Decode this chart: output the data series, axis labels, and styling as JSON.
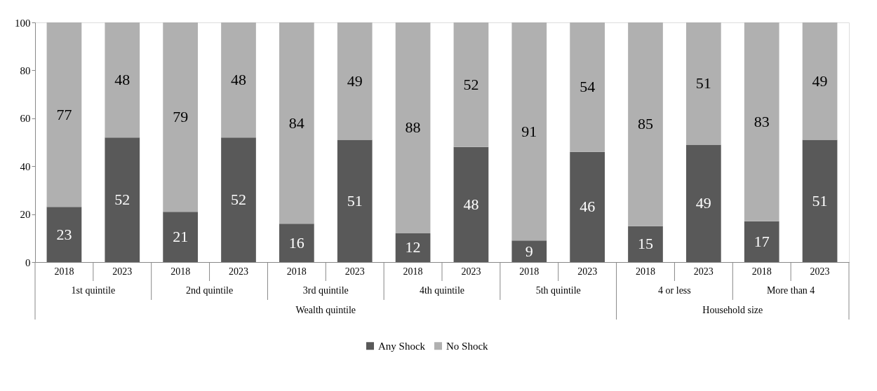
{
  "chart_data": {
    "type": "bar",
    "stacked": true,
    "data_labels": true,
    "legend": "bottom",
    "grid": false,
    "categories": [
      "2018",
      "2023",
      "2018",
      "2023",
      "2018",
      "2023",
      "2018",
      "2023",
      "2018",
      "2023",
      "2018",
      "2023",
      "2018",
      "2023"
    ],
    "annotations": [
      "1st quintile",
      "2nd quintile",
      "3rd quintile",
      "4th quintile",
      "5th quintile",
      "4 or less",
      "More than 4",
      "Wealth quintile",
      "Household size"
    ],
    "ylim": [
      0,
      100
    ],
    "yticks": [
      0,
      20,
      40,
      60,
      80,
      100
    ],
    "series": [
      {
        "name": "Any Shock",
        "color": "#595959",
        "values": [
          23,
          52,
          21,
          52,
          16,
          51,
          12,
          48,
          9,
          46,
          15,
          49,
          17,
          51
        ]
      },
      {
        "name": "No Shock",
        "color": "#b0b0b0",
        "values": [
          77,
          48,
          79,
          48,
          84,
          49,
          88,
          52,
          91,
          54,
          85,
          51,
          83,
          49
        ]
      }
    ]
  }
}
